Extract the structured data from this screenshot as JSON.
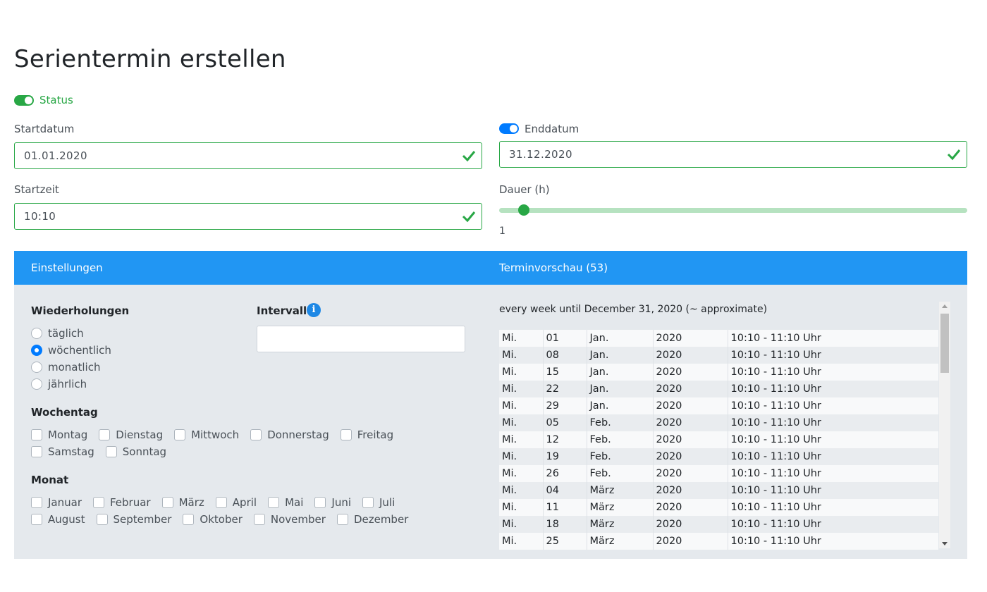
{
  "page": {
    "title": "Serientermin erstellen"
  },
  "status": {
    "label": "Status",
    "enabled": true
  },
  "startdatum": {
    "label": "Startdatum",
    "value": "01.01.2020",
    "valid": true
  },
  "enddatum": {
    "label": "Enddatum",
    "value": "31.12.2020",
    "valid": true,
    "enabled": true
  },
  "startzeit": {
    "label": "Startzeit",
    "value": "10:10",
    "valid": true
  },
  "dauer": {
    "label": "Dauer (h)",
    "value": "1",
    "min": 0,
    "max": 24,
    "current": 1
  },
  "panel": {
    "left_title": "Einstellungen",
    "right_title": "Terminvorschau (53)"
  },
  "wiederholungen": {
    "title": "Wiederholungen",
    "options": [
      {
        "label": "täglich",
        "checked": false
      },
      {
        "label": "wöchentlich",
        "checked": true
      },
      {
        "label": "monatlich",
        "checked": false
      },
      {
        "label": "jährlich",
        "checked": false
      }
    ]
  },
  "intervall": {
    "title": "Intervall",
    "info_icon": "info-icon",
    "value": ""
  },
  "wochentag": {
    "title": "Wochentag",
    "rows": [
      [
        "Montag",
        "Dienstag",
        "Mittwoch",
        "Donnerstag",
        "Freitag"
      ],
      [
        "Samstag",
        "Sonntag"
      ]
    ]
  },
  "monat": {
    "title": "Monat",
    "rows": [
      [
        "Januar",
        "Februar",
        "März",
        "April",
        "Mai",
        "Juni",
        "Juli"
      ],
      [
        "August",
        "September",
        "Oktober",
        "November",
        "Dezember"
      ]
    ]
  },
  "preview": {
    "summary": "every week until December 31, 2020 (~ approximate)",
    "rows": [
      [
        "Mi.",
        "01",
        "Jan.",
        "2020",
        "10:10 - 11:10 Uhr"
      ],
      [
        "Mi.",
        "08",
        "Jan.",
        "2020",
        "10:10 - 11:10 Uhr"
      ],
      [
        "Mi.",
        "15",
        "Jan.",
        "2020",
        "10:10 - 11:10 Uhr"
      ],
      [
        "Mi.",
        "22",
        "Jan.",
        "2020",
        "10:10 - 11:10 Uhr"
      ],
      [
        "Mi.",
        "29",
        "Jan.",
        "2020",
        "10:10 - 11:10 Uhr"
      ],
      [
        "Mi.",
        "05",
        "Feb.",
        "2020",
        "10:10 - 11:10 Uhr"
      ],
      [
        "Mi.",
        "12",
        "Feb.",
        "2020",
        "10:10 - 11:10 Uhr"
      ],
      [
        "Mi.",
        "19",
        "Feb.",
        "2020",
        "10:10 - 11:10 Uhr"
      ],
      [
        "Mi.",
        "26",
        "Feb.",
        "2020",
        "10:10 - 11:10 Uhr"
      ],
      [
        "Mi.",
        "04",
        "März",
        "2020",
        "10:10 - 11:10 Uhr"
      ],
      [
        "Mi.",
        "11",
        "März",
        "2020",
        "10:10 - 11:10 Uhr"
      ],
      [
        "Mi.",
        "18",
        "März",
        "2020",
        "10:10 - 11:10 Uhr"
      ],
      [
        "Mi.",
        "25",
        "März",
        "2020",
        "10:10 - 11:10 Uhr"
      ]
    ]
  },
  "colors": {
    "accent": "#2196f3",
    "success": "#28a745",
    "primary": "#007bff"
  }
}
